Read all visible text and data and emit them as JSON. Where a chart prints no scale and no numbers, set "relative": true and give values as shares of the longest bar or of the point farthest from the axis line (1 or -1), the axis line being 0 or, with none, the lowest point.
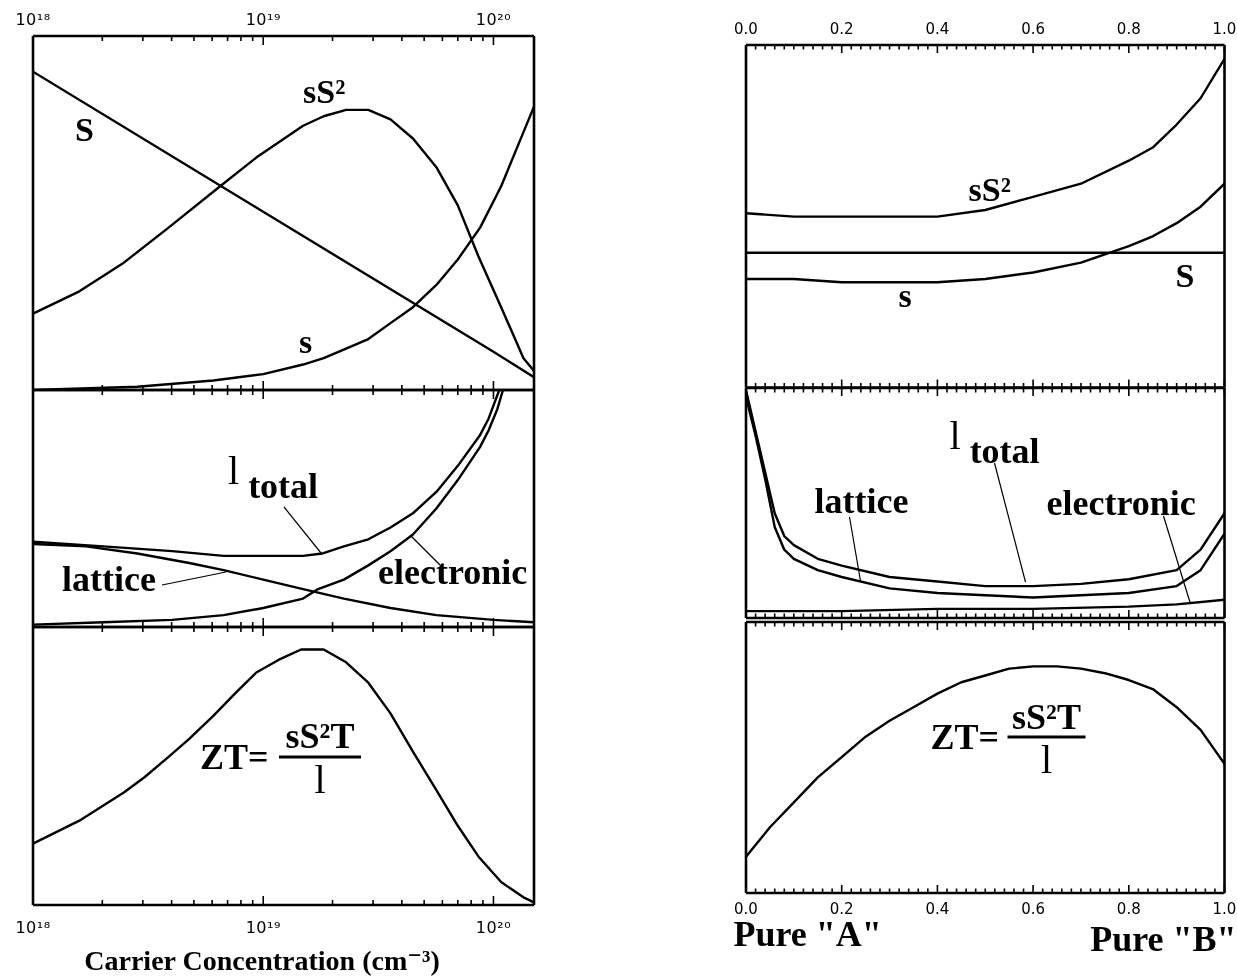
{
  "chart_data": [
    {
      "type": "line",
      "relative": true,
      "log": "x",
      "marker": "none",
      "xlim": [
        1e+18,
        1.5e+20
      ],
      "xticks": [
        {
          "value": 1e+18,
          "label": "10¹⁸"
        },
        {
          "value": 2e+18,
          "label": null
        },
        {
          "value": 3e+18,
          "label": null
        },
        {
          "value": 4e+18,
          "label": null
        },
        {
          "value": 5e+18,
          "label": null
        },
        {
          "value": 6e+18,
          "label": null
        },
        {
          "value": 7e+18,
          "label": null
        },
        {
          "value": 8e+18,
          "label": null
        },
        {
          "value": 9e+18,
          "label": null
        },
        {
          "value": 1e+19,
          "label": "10¹⁹"
        },
        {
          "value": 2e+19,
          "label": null
        },
        {
          "value": 3e+19,
          "label": null
        },
        {
          "value": 4e+19,
          "label": null
        },
        {
          "value": 5e+19,
          "label": null
        },
        {
          "value": 6e+19,
          "label": null
        },
        {
          "value": 7e+19,
          "label": null
        },
        {
          "value": 8e+19,
          "label": null
        },
        {
          "value": 9e+19,
          "label": null
        },
        {
          "value": 1e+20,
          "label": "10²⁰"
        }
      ],
      "series": [
        {
          "name": "S",
          "color": "#000000",
          "x": [
            1e+18,
            1e+19,
            1e+20,
            1.5e+20
          ],
          "values": [
            1.0,
            0.56,
            0.12,
            0.04
          ]
        },
        {
          "name": "sS²",
          "color": "#000000",
          "x": [
            1e+18,
            1.59e+18,
            2.48e+18,
            3.88e+18,
            6.5e+18,
            9.33e+18,
            1.49e+19,
            1.83e+19,
            2.29e+19,
            2.86e+19,
            3.57e+19,
            4.47e+19,
            5.65e+19,
            7e+19,
            8.6e+19,
            1.08e+20,
            1.35e+20,
            1.5e+20
          ],
          "values": [
            0.24,
            0.31,
            0.4,
            0.51,
            0.64,
            0.73,
            0.83,
            0.86,
            0.88,
            0.88,
            0.85,
            0.79,
            0.7,
            0.58,
            0.42,
            0.26,
            0.1,
            0.06
          ]
        },
        {
          "name": "s",
          "color": "#000000",
          "x": [
            1e+18,
            2.84e+18,
            6.07e+18,
            1e+19,
            1.49e+19,
            1.83e+19,
            2.29e+19,
            2.86e+19,
            3.57e+19,
            4.47e+19,
            5.65e+19,
            7e+19,
            8.75e+19,
            1.08e+20,
            1.35e+20,
            1.5e+20
          ],
          "values": [
            0.0,
            0.01,
            0.03,
            0.05,
            0.08,
            0.1,
            0.13,
            0.16,
            0.21,
            0.26,
            0.33,
            0.41,
            0.51,
            0.64,
            0.81,
            0.89
          ]
        }
      ]
    },
    {
      "type": "line",
      "relative": true,
      "marker": "none",
      "xlim": [
        0,
        1
      ],
      "xticks": [
        {
          "value": 0,
          "label": "0.0"
        },
        {
          "value": 0.02,
          "label": null
        },
        {
          "value": 0.04,
          "label": null
        },
        {
          "value": 0.06,
          "label": null
        },
        {
          "value": 0.08,
          "label": null
        },
        {
          "value": 0.1,
          "label": null
        },
        {
          "value": 0.12,
          "label": null
        },
        {
          "value": 0.14,
          "label": null
        },
        {
          "value": 0.16,
          "label": null
        },
        {
          "value": 0.18,
          "label": null
        },
        0.2,
        {
          "value": 0.22,
          "label": null
        },
        {
          "value": 0.24,
          "label": null
        },
        {
          "value": 0.26,
          "label": null
        },
        {
          "value": 0.28,
          "label": null
        },
        {
          "value": 0.3,
          "label": null
        },
        {
          "value": 0.32,
          "label": null
        },
        {
          "value": 0.34,
          "label": null
        },
        {
          "value": 0.36,
          "label": null
        },
        {
          "value": 0.38,
          "label": null
        },
        0.4,
        {
          "value": 0.42,
          "label": null
        },
        {
          "value": 0.44,
          "label": null
        },
        {
          "value": 0.46,
          "label": null
        },
        {
          "value": 0.48,
          "label": null
        },
        {
          "value": 0.5,
          "label": null
        },
        {
          "value": 0.52,
          "label": null
        },
        {
          "value": 0.54,
          "label": null
        },
        {
          "value": 0.56,
          "label": null
        },
        {
          "value": 0.58,
          "label": null
        },
        0.6,
        {
          "value": 0.62,
          "label": null
        },
        {
          "value": 0.64,
          "label": null
        },
        {
          "value": 0.66,
          "label": null
        },
        {
          "value": 0.68,
          "label": null
        },
        {
          "value": 0.7,
          "label": null
        },
        {
          "value": 0.72,
          "label": null
        },
        {
          "value": 0.74,
          "label": null
        },
        {
          "value": 0.76,
          "label": null
        },
        {
          "value": 0.78,
          "label": null
        },
        0.8,
        {
          "value": 0.82,
          "label": null
        },
        {
          "value": 0.84,
          "label": null
        },
        {
          "value": 0.86,
          "label": null
        },
        {
          "value": 0.88,
          "label": null
        },
        {
          "value": 0.9,
          "label": null
        },
        {
          "value": 0.92,
          "label": null
        },
        {
          "value": 0.94,
          "label": null
        },
        {
          "value": 0.96,
          "label": null
        },
        {
          "value": 0.98,
          "label": null
        },
        {
          "value": 1,
          "label": "1.0"
        }
      ],
      "series": [
        {
          "name": "sS²",
          "color": "#000000",
          "x": [
            0,
            0.1,
            0.2,
            0.3,
            0.4,
            0.5,
            0.6,
            0.7,
            0.8,
            0.85,
            0.9,
            0.95,
            1
          ],
          "values": [
            0.53,
            0.52,
            0.52,
            0.52,
            0.52,
            0.54,
            0.58,
            0.62,
            0.69,
            0.73,
            0.8,
            0.88,
            1.0
          ]
        },
        {
          "name": "S",
          "color": "#000000",
          "x": [
            0,
            1
          ],
          "values": [
            0.41,
            0.41
          ]
        },
        {
          "name": "s",
          "color": "#000000",
          "x": [
            0,
            0.1,
            0.2,
            0.3,
            0.4,
            0.5,
            0.6,
            0.7,
            0.8,
            0.85,
            0.9,
            0.95,
            1
          ],
          "values": [
            0.33,
            0.33,
            0.32,
            0.32,
            0.32,
            0.33,
            0.35,
            0.38,
            0.43,
            0.46,
            0.5,
            0.55,
            0.62
          ]
        }
      ]
    },
    {
      "type": "line",
      "relative": true,
      "log": "x",
      "marker": "none",
      "tick_labels": false,
      "xlim": [
        1e+18,
        1.5e+20
      ],
      "series": [
        {
          "name": "l$_{total}$",
          "color": "#000000",
          "x": [
            1e+18,
            2.02e+18,
            4.02e+18,
            6.73e+18,
            1e+19,
            1.49e+19,
            1.8e+19,
            2.24e+19,
            2.86e+19,
            3.57e+19,
            4.47e+19,
            5.65e+19,
            7e+19,
            8.75e+19,
            9.53e+19,
            1.06e+20
          ],
          "values": [
            0.36,
            0.34,
            0.32,
            0.3,
            0.3,
            0.3,
            0.31,
            0.34,
            0.37,
            0.42,
            0.48,
            0.57,
            0.68,
            0.81,
            0.88,
            1.0
          ]
        },
        {
          "name": "lattice",
          "color": "#000000",
          "x": [
            1e+18,
            1.7e+18,
            2.84e+18,
            4.77e+18,
            6.73e+18,
            1e+19,
            1.49e+19,
            2.24e+19,
            3.57e+19,
            5.65e+19,
            1e+20,
            1.5e+20
          ],
          "values": [
            0.35,
            0.34,
            0.31,
            0.27,
            0.24,
            0.2,
            0.16,
            0.12,
            0.08,
            0.05,
            0.03,
            0.02
          ]
        },
        {
          "name": "electronic",
          "color": "#000000",
          "x": [
            1e+18,
            2.02e+18,
            4.02e+18,
            6.73e+18,
            1e+19,
            1.49e+19,
            1.73e+19,
            2.24e+19,
            2.86e+19,
            3.57e+19,
            4.47e+19,
            5.65e+19,
            7e+19,
            8.75e+19,
            9.53e+19,
            1.04e+20,
            1.1e+20
          ],
          "values": [
            0.01,
            0.02,
            0.03,
            0.05,
            0.08,
            0.12,
            0.16,
            0.2,
            0.26,
            0.32,
            0.39,
            0.5,
            0.62,
            0.76,
            0.83,
            0.92,
            1.0
          ]
        }
      ]
    },
    {
      "type": "line",
      "relative": true,
      "marker": "none",
      "tick_labels": false,
      "xlim": [
        0,
        1
      ],
      "series": [
        {
          "name": "l$_{total}$",
          "color": "#000000",
          "x": [
            0,
            0.02,
            0.04,
            0.06,
            0.08,
            0.1,
            0.15,
            0.2,
            0.3,
            0.4,
            0.5,
            0.6,
            0.7,
            0.8,
            0.9,
            0.95,
            1
          ],
          "values": [
            1.0,
            0.82,
            0.64,
            0.46,
            0.36,
            0.32,
            0.26,
            0.23,
            0.18,
            0.16,
            0.14,
            0.14,
            0.15,
            0.17,
            0.21,
            0.3,
            0.46
          ]
        },
        {
          "name": "lattice",
          "color": "#000000",
          "x": [
            0,
            0.02,
            0.04,
            0.06,
            0.08,
            0.1,
            0.15,
            0.2,
            0.3,
            0.4,
            0.5,
            0.6,
            0.7,
            0.8,
            0.9,
            0.95,
            1
          ],
          "values": [
            0.97,
            0.8,
            0.61,
            0.4,
            0.3,
            0.26,
            0.21,
            0.18,
            0.13,
            0.11,
            0.1,
            0.09,
            0.1,
            0.11,
            0.14,
            0.21,
            0.37
          ]
        },
        {
          "name": "electronic",
          "color": "#000000",
          "x": [
            0,
            0.2,
            0.4,
            0.6,
            0.8,
            0.9,
            1
          ],
          "values": [
            0.03,
            0.03,
            0.04,
            0.04,
            0.05,
            0.06,
            0.08
          ]
        }
      ]
    },
    {
      "type": "line",
      "relative": true,
      "log": "x",
      "marker": "none",
      "xlim": [
        1e+18,
        1.5e+20
      ],
      "xticks": [
        {
          "value": 1e+18,
          "label": "10¹⁸"
        },
        {
          "value": 2e+18,
          "label": null
        },
        {
          "value": 3e+18,
          "label": null
        },
        {
          "value": 4e+18,
          "label": null
        },
        {
          "value": 5e+18,
          "label": null
        },
        {
          "value": 6e+18,
          "label": null
        },
        {
          "value": 7e+18,
          "label": null
        },
        {
          "value": 8e+18,
          "label": null
        },
        {
          "value": 9e+18,
          "label": null
        },
        {
          "value": 1e+19,
          "label": "10¹⁹"
        },
        {
          "value": 2e+19,
          "label": null
        },
        {
          "value": 3e+19,
          "label": null
        },
        {
          "value": 4e+19,
          "label": null
        },
        {
          "value": 5e+19,
          "label": null
        },
        {
          "value": 6e+19,
          "label": null
        },
        {
          "value": 7e+19,
          "label": null
        },
        {
          "value": 8e+19,
          "label": null
        },
        {
          "value": 9e+19,
          "label": null
        },
        {
          "value": 1e+20,
          "label": "10²⁰"
        }
      ],
      "xlabel": "Carrier Concentration (cm⁻³)",
      "annotations": [
        "ZT=",
        "sS²T",
        "l"
      ],
      "series": [
        {
          "color": "#000000",
          "x": [
            1e+18,
            1.59e+18,
            2.48e+18,
            3.05e+18,
            3.88e+18,
            4.77e+18,
            6.07e+18,
            7.59e+18,
            9.33e+18,
            1.17e+19,
            1.46e+19,
            1.83e+19,
            2.29e+19,
            2.86e+19,
            3.57e+19,
            4.47e+19,
            5.65e+19,
            7e+19,
            8.6e+19,
            1.08e+20,
            1.35e+20,
            1.5e+20
          ],
          "values": [
            0.24,
            0.33,
            0.44,
            0.5,
            0.58,
            0.65,
            0.74,
            0.83,
            0.91,
            0.96,
            1.0,
            1.0,
            0.95,
            0.87,
            0.75,
            0.6,
            0.45,
            0.31,
            0.19,
            0.09,
            0.03,
            0.01
          ]
        }
      ]
    },
    {
      "type": "line",
      "relative": true,
      "marker": "none",
      "xlim": [
        0,
        1
      ],
      "xticks": [
        {
          "value": 0,
          "label": "0.0"
        },
        {
          "value": 0.02,
          "label": null
        },
        {
          "value": 0.04,
          "label": null
        },
        {
          "value": 0.06,
          "label": null
        },
        {
          "value": 0.08,
          "label": null
        },
        {
          "value": 0.1,
          "label": null
        },
        {
          "value": 0.12,
          "label": null
        },
        {
          "value": 0.14,
          "label": null
        },
        {
          "value": 0.16,
          "label": null
        },
        {
          "value": 0.18,
          "label": null
        },
        0.2,
        {
          "value": 0.22,
          "label": null
        },
        {
          "value": 0.24,
          "label": null
        },
        {
          "value": 0.26,
          "label": null
        },
        {
          "value": 0.28,
          "label": null
        },
        {
          "value": 0.3,
          "label": null
        },
        {
          "value": 0.32,
          "label": null
        },
        {
          "value": 0.34,
          "label": null
        },
        {
          "value": 0.36,
          "label": null
        },
        {
          "value": 0.38,
          "label": null
        },
        0.4,
        {
          "value": 0.42,
          "label": null
        },
        {
          "value": 0.44,
          "label": null
        },
        {
          "value": 0.46,
          "label": null
        },
        {
          "value": 0.48,
          "label": null
        },
        {
          "value": 0.5,
          "label": null
        },
        {
          "value": 0.52,
          "label": null
        },
        {
          "value": 0.54,
          "label": null
        },
        {
          "value": 0.56,
          "label": null
        },
        {
          "value": 0.58,
          "label": null
        },
        0.6,
        {
          "value": 0.62,
          "label": null
        },
        {
          "value": 0.64,
          "label": null
        },
        {
          "value": 0.66,
          "label": null
        },
        {
          "value": 0.68,
          "label": null
        },
        {
          "value": 0.7,
          "label": null
        },
        {
          "value": 0.72,
          "label": null
        },
        {
          "value": 0.74,
          "label": null
        },
        {
          "value": 0.76,
          "label": null
        },
        {
          "value": 0.78,
          "label": null
        },
        0.8,
        {
          "value": 0.82,
          "label": null
        },
        {
          "value": 0.84,
          "label": null
        },
        {
          "value": 0.86,
          "label": null
        },
        {
          "value": 0.88,
          "label": null
        },
        {
          "value": 0.9,
          "label": null
        },
        {
          "value": 0.92,
          "label": null
        },
        {
          "value": 0.94,
          "label": null
        },
        {
          "value": 0.96,
          "label": null
        },
        {
          "value": 0.98,
          "label": null
        },
        {
          "value": 1,
          "label": "1.0"
        }
      ],
      "annotations": [
        "ZT=",
        "sS²T",
        "l",
        "Pure \"A\"",
        "Pure \"B\""
      ],
      "series": [
        {
          "color": "#000000",
          "x": [
            0,
            0.05,
            0.1,
            0.15,
            0.2,
            0.25,
            0.3,
            0.35,
            0.4,
            0.45,
            0.5,
            0.55,
            0.6,
            0.65,
            0.7,
            0.75,
            0.8,
            0.85,
            0.9,
            0.95,
            1
          ],
          "values": [
            0.16,
            0.29,
            0.4,
            0.51,
            0.6,
            0.69,
            0.76,
            0.82,
            0.88,
            0.93,
            0.96,
            0.99,
            1.0,
            1.0,
            0.99,
            0.97,
            0.94,
            0.9,
            0.82,
            0.72,
            0.57
          ]
        }
      ]
    }
  ]
}
